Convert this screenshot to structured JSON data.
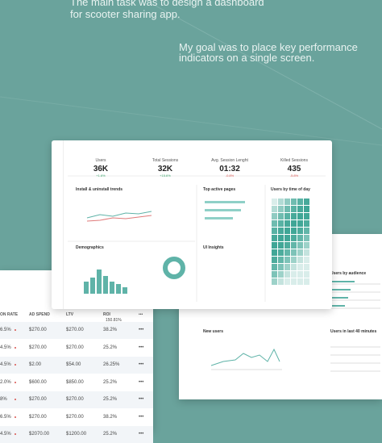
{
  "header": {
    "line1": "The main task was to design a dashboard",
    "line2": "for scooter sharing app.",
    "goal": "My goal was to place key performance indicators on a single screen."
  },
  "kpis": [
    {
      "label": "Users",
      "value": "36K",
      "change": "+1.6%"
    },
    {
      "label": "Total Sessions",
      "value": "32K",
      "change": "+15.6%"
    },
    {
      "label": "Avg. Session Lenght",
      "value": "01:32",
      "change": "-0.8%"
    },
    {
      "label": "Killed Sessions",
      "value": "435",
      "change": "-5.8%"
    }
  ],
  "panels": {
    "trends": "Install & uninstall trends",
    "pages": "Top active pages",
    "time": "Users by time of day",
    "demographics": "Demographics",
    "insights": "UI Insights"
  },
  "table": {
    "headers": [
      "ON RATE",
      "AD SPEND",
      "LTV",
      "ROI"
    ],
    "roi_total": "150.81%",
    "more": "•••",
    "rows": [
      [
        "6.5%",
        "$270.00",
        "$270.00",
        "38.2%"
      ],
      [
        "4.5%",
        "$270.00",
        "$270.00",
        "25.2%"
      ],
      [
        "4.5%",
        "$2.00",
        "$54.00",
        "26.25%"
      ],
      [
        "2.0%",
        "$600.00",
        "$850.00",
        "25.2%"
      ],
      [
        "8%",
        "$270.00",
        "$270.00",
        "25.2%"
      ],
      [
        "6.5%",
        "$270.00",
        "$270.00",
        "38.2%"
      ],
      [
        "4.5%",
        "$2070.00",
        "$1200.00",
        "25.2%"
      ]
    ]
  },
  "right": {
    "new_users": "New users",
    "audience": "Users by audience",
    "last": "Users in last 40 minutes"
  }
}
